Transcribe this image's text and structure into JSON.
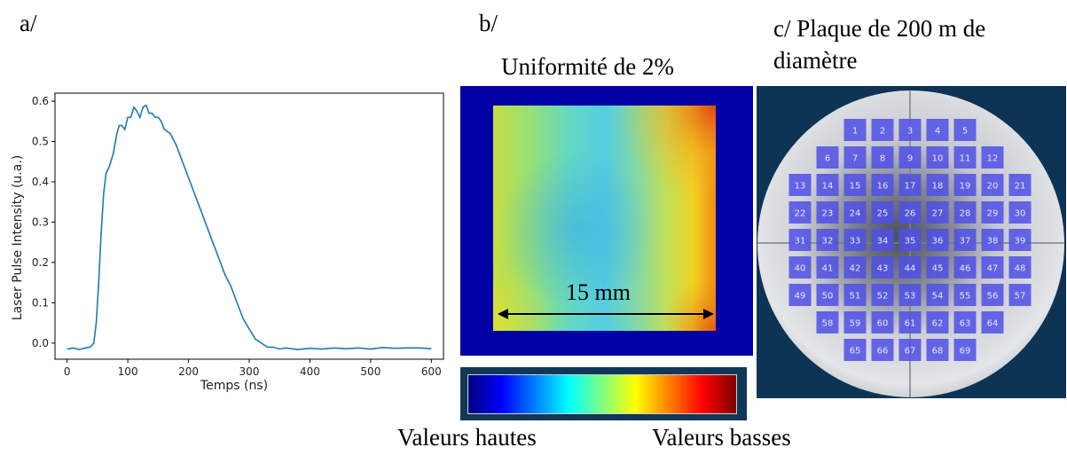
{
  "labels": {
    "a": "a/",
    "b": "b/",
    "c_line1": "c/ Plaque de 200 m de",
    "c_line2": "diamètre",
    "uniformity": "Uniformité de 2%",
    "scale": "15 mm",
    "high_values": "Valeurs hautes",
    "low_values": "Valeurs basses"
  },
  "chart_data": {
    "type": "line",
    "title": "",
    "xlabel": "Temps (ns)",
    "ylabel": "Laser Pulse Intensity (u.a.)",
    "xlim": [
      -20,
      620
    ],
    "ylim": [
      -0.04,
      0.62
    ],
    "xticks": [
      0,
      100,
      200,
      300,
      400,
      500,
      600
    ],
    "yticks": [
      0.0,
      0.1,
      0.2,
      0.3,
      0.4,
      0.5,
      0.6
    ],
    "xtick_labels": [
      "0",
      "100",
      "200",
      "300",
      "400",
      "500",
      "600"
    ],
    "ytick_labels": [
      "0.0",
      "0.1",
      "0.2",
      "0.3",
      "0.4",
      "0.5",
      "0.6"
    ],
    "line_color": "#1f77b4",
    "series": [
      {
        "x": [
          0,
          10,
          20,
          30,
          38,
          44,
          48,
          52,
          56,
          60,
          64,
          70,
          76,
          82,
          86,
          90,
          95,
          100,
          105,
          110,
          115,
          120,
          125,
          130,
          135,
          140,
          145,
          150,
          155,
          160,
          170,
          180,
          190,
          200,
          210,
          220,
          230,
          240,
          250,
          260,
          270,
          280,
          290,
          300,
          310,
          320,
          330,
          340,
          350,
          360,
          380,
          400,
          420,
          440,
          460,
          480,
          500,
          520,
          540,
          560,
          580,
          600
        ],
        "y": [
          -0.015,
          -0.012,
          -0.016,
          -0.012,
          -0.01,
          0.0,
          0.05,
          0.15,
          0.27,
          0.37,
          0.42,
          0.44,
          0.47,
          0.52,
          0.54,
          0.54,
          0.53,
          0.56,
          0.56,
          0.585,
          0.575,
          0.56,
          0.585,
          0.59,
          0.57,
          0.57,
          0.56,
          0.56,
          0.55,
          0.53,
          0.52,
          0.49,
          0.45,
          0.41,
          0.37,
          0.33,
          0.29,
          0.25,
          0.21,
          0.17,
          0.14,
          0.1,
          0.06,
          0.035,
          0.01,
          0.0,
          -0.01,
          -0.01,
          -0.015,
          -0.012,
          -0.016,
          -0.013,
          -0.015,
          -0.012,
          -0.014,
          -0.012,
          -0.015,
          -0.011,
          -0.013,
          -0.012,
          -0.012,
          -0.014
        ]
      }
    ]
  },
  "colorbar": {
    "colors": [
      "#00007f",
      "#0000ff",
      "#0080ff",
      "#00ffff",
      "#80ff80",
      "#ffff00",
      "#ff8000",
      "#ff0000",
      "#7f0000"
    ]
  },
  "wafer": {
    "rows": [
      [
        "1",
        "2",
        "3",
        "4",
        "5"
      ],
      [
        "6",
        "7",
        "8",
        "9",
        "10",
        "11",
        "12"
      ],
      [
        "13",
        "14",
        "15",
        "16",
        "17",
        "18",
        "19",
        "20",
        "21"
      ],
      [
        "22",
        "23",
        "24",
        "25",
        "26",
        "27",
        "28",
        "29",
        "30"
      ],
      [
        "31",
        "32",
        "33",
        "34",
        "35",
        "36",
        "37",
        "38",
        "39"
      ],
      [
        "40",
        "41",
        "42",
        "43",
        "44",
        "45",
        "46",
        "47",
        "48"
      ],
      [
        "49",
        "50",
        "51",
        "52",
        "53",
        "54",
        "55",
        "56",
        "57"
      ],
      [
        "58",
        "59",
        "60",
        "61",
        "62",
        "63",
        "64"
      ],
      [
        "65",
        "66",
        "67",
        "68",
        "69"
      ]
    ],
    "die_color": "#4f4fe6",
    "background_color": "#0e3455"
  }
}
